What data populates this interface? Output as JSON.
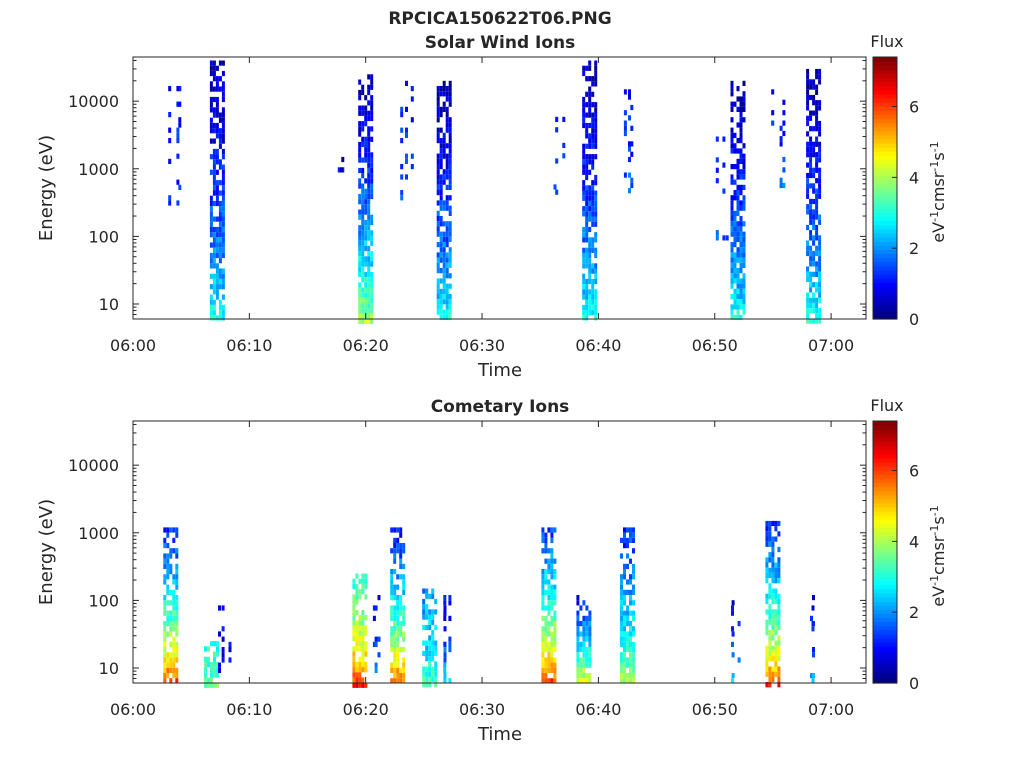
{
  "figure_title": "RPCICA150622T06.PNG",
  "chart_data": [
    {
      "type": "heatmap",
      "title": "Solar Wind Ions",
      "xlabel": "Time",
      "ylabel": "Energy (eV)",
      "x_range": [
        "06:00",
        "07:03"
      ],
      "x_ticks": [
        "06:00",
        "06:10",
        "06:20",
        "06:30",
        "06:40",
        "06:50",
        "07:00"
      ],
      "y_scale": "log",
      "ylim": [
        6,
        45000
      ],
      "y_ticks": [
        10,
        100,
        1000,
        10000
      ],
      "y_tick_labels": [
        "10",
        "100",
        "1000",
        "10000"
      ],
      "colorbar": {
        "title": "Flux",
        "label": "eV-1cm-2sr-1s-1",
        "range": [
          0,
          7.4
        ],
        "ticks": [
          0,
          2,
          4,
          6
        ],
        "tick_labels": [
          "0",
          "2",
          "4",
          "6"
        ],
        "colormap": "jet"
      },
      "bursts": [
        {
          "time": "06:03:45",
          "emin": 300,
          "emax": 20000,
          "sparse": true,
          "low_flux": 1.6,
          "high_flux": 0.9
        },
        {
          "time": "06:07:15",
          "emin": 6,
          "emax": 40000,
          "sparse": false,
          "low_flux": 3.2,
          "high_flux": 0.3
        },
        {
          "time": "06:18:00",
          "emin": 1000,
          "emax": 1500,
          "sparse": true,
          "low_flux": 1.0,
          "high_flux": 0.5
        },
        {
          "time": "06:20:00",
          "emin": 6,
          "emax": 25000,
          "sparse": false,
          "low_flux": 4.2,
          "high_flux": 0.3
        },
        {
          "time": "06:23:30",
          "emin": 300,
          "emax": 20000,
          "sparse": true,
          "low_flux": 1.8,
          "high_flux": 0.9
        },
        {
          "time": "06:26:45",
          "emin": 6,
          "emax": 20000,
          "sparse": false,
          "low_flux": 3.2,
          "high_flux": 0.3
        },
        {
          "time": "06:36:30",
          "emin": 300,
          "emax": 10000,
          "sparse": true,
          "low_flux": 1.6,
          "high_flux": 1.0
        },
        {
          "time": "06:39:15",
          "emin": 6,
          "emax": 40000,
          "sparse": false,
          "low_flux": 3.2,
          "high_flux": 0.3
        },
        {
          "time": "06:42:30",
          "emin": 500,
          "emax": 15000,
          "sparse": true,
          "low_flux": 1.8,
          "high_flux": 0.9
        },
        {
          "time": "06:50:30",
          "emin": 90,
          "emax": 3000,
          "sparse": true,
          "low_flux": 1.5,
          "high_flux": 1.0
        },
        {
          "time": "06:52:00",
          "emin": 6,
          "emax": 20000,
          "sparse": false,
          "low_flux": 3.2,
          "high_flux": 0.3
        },
        {
          "time": "06:55:30",
          "emin": 600,
          "emax": 15000,
          "sparse": true,
          "low_flux": 1.8,
          "high_flux": 0.9
        },
        {
          "time": "06:58:30",
          "emin": 6,
          "emax": 30000,
          "sparse": false,
          "low_flux": 3.2,
          "high_flux": 0.3
        }
      ]
    },
    {
      "type": "heatmap",
      "title": "Cometary Ions",
      "xlabel": "Time",
      "ylabel": "Energy (eV)",
      "x_range": [
        "06:00",
        "07:03"
      ],
      "x_ticks": [
        "06:00",
        "06:10",
        "06:20",
        "06:30",
        "06:40",
        "06:50",
        "07:00"
      ],
      "y_scale": "log",
      "ylim": [
        6,
        45000
      ],
      "y_ticks": [
        10,
        100,
        1000,
        10000
      ],
      "y_tick_labels": [
        "10",
        "100",
        "1000",
        "10000"
      ],
      "colorbar": {
        "title": "Flux",
        "label": "eV-1cm-2sr-1s-1",
        "range": [
          0,
          7.4
        ],
        "ticks": [
          0,
          2,
          4,
          6
        ],
        "tick_labels": [
          "0",
          "2",
          "4",
          "6"
        ],
        "colormap": "jet"
      },
      "bursts": [
        {
          "time": "06:03:15",
          "emin": 6,
          "emax": 1200,
          "sparse": false,
          "low_flux": 6.6,
          "high_flux": 1.2
        },
        {
          "time": "06:06:45",
          "emin": 6,
          "emax": 25,
          "sparse": false,
          "low_flux": 3.6,
          "high_flux": 3.0
        },
        {
          "time": "06:07:45",
          "emin": 6,
          "emax": 120,
          "sparse": true,
          "low_flux": 1.2,
          "high_flux": 0.8
        },
        {
          "time": "06:19:30",
          "emin": 6,
          "emax": 250,
          "sparse": false,
          "low_flux": 6.4,
          "high_flux": 3.0
        },
        {
          "time": "06:20:45",
          "emin": 6,
          "emax": 120,
          "sparse": true,
          "low_flux": 3.0,
          "high_flux": 0.8
        },
        {
          "time": "06:22:45",
          "emin": 6,
          "emax": 1200,
          "sparse": false,
          "low_flux": 6.4,
          "high_flux": 1.0
        },
        {
          "time": "06:25:30",
          "emin": 6,
          "emax": 150,
          "sparse": false,
          "low_flux": 3.4,
          "high_flux": 2.0
        },
        {
          "time": "06:26:45",
          "emin": 6,
          "emax": 120,
          "sparse": true,
          "low_flux": 2.6,
          "high_flux": 0.8
        },
        {
          "time": "06:35:45",
          "emin": 6,
          "emax": 1200,
          "sparse": false,
          "low_flux": 6.6,
          "high_flux": 1.4
        },
        {
          "time": "06:38:45",
          "emin": 6,
          "emax": 120,
          "sparse": false,
          "low_flux": 5.2,
          "high_flux": 1.0
        },
        {
          "time": "06:42:30",
          "emin": 6,
          "emax": 1200,
          "sparse": false,
          "low_flux": 4.4,
          "high_flux": 1.2
        },
        {
          "time": "06:51:45",
          "emin": 6,
          "emax": 120,
          "sparse": true,
          "low_flux": 2.6,
          "high_flux": 0.8
        },
        {
          "time": "06:55:00",
          "emin": 6,
          "emax": 1500,
          "sparse": false,
          "low_flux": 6.4,
          "high_flux": 1.2
        },
        {
          "time": "06:58:30",
          "emin": 6,
          "emax": 120,
          "sparse": true,
          "low_flux": 2.6,
          "high_flux": 0.8
        }
      ]
    }
  ]
}
